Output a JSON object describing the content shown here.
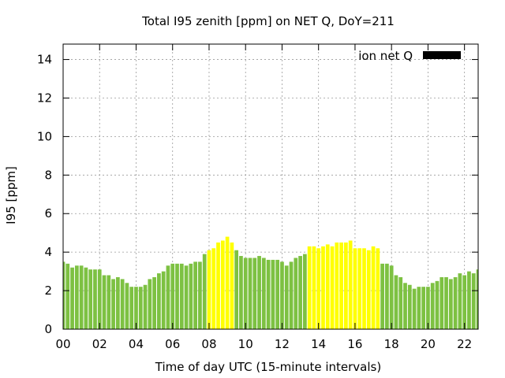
{
  "chart_data": {
    "type": "bar",
    "title": "Total I95 zenith [ppm] on NET Q, DoY=211",
    "xlabel": "Time of day UTC (15-minute intervals)",
    "ylabel": "I95 [ppm]",
    "xlim": [
      0,
      22.75
    ],
    "ylim": [
      0,
      14.8
    ],
    "xticks": [
      "00",
      "02",
      "04",
      "06",
      "08",
      "10",
      "12",
      "14",
      "16",
      "18",
      "20",
      "22"
    ],
    "yticks": [
      "0",
      "2",
      "4",
      "6",
      "8",
      "10",
      "12",
      "14"
    ],
    "grid": true,
    "legend_position": "top-right",
    "series": [
      {
        "name": "ion net Q",
        "color": "#000000",
        "x": [
          0.0,
          0.25,
          0.5,
          0.75,
          1.0,
          1.25,
          1.5,
          1.75,
          2.0,
          2.25,
          2.5,
          2.75,
          3.0,
          3.25,
          3.5,
          3.75,
          4.0,
          4.25,
          4.5,
          4.75,
          5.0,
          5.25,
          5.5,
          5.75,
          6.0,
          6.25,
          6.5,
          6.75,
          7.0,
          7.25,
          7.5,
          7.75,
          8.0,
          8.25,
          8.5,
          8.75,
          9.0,
          9.25,
          9.5,
          9.75,
          10.0,
          10.25,
          10.5,
          10.75,
          11.0,
          11.25,
          11.5,
          11.75,
          12.0,
          12.25,
          12.5,
          12.75,
          13.0,
          13.25,
          13.5,
          13.75,
          14.0,
          14.25,
          14.5,
          14.75,
          15.0,
          15.25,
          15.5,
          15.75,
          16.0,
          16.25,
          16.5,
          16.75,
          17.0,
          17.25,
          17.5,
          17.75,
          18.0,
          18.25,
          18.5,
          18.75,
          19.0,
          19.25,
          19.5,
          19.75,
          20.0,
          20.25,
          20.5,
          20.75,
          21.0,
          21.25,
          21.5,
          21.75,
          22.0,
          22.25,
          22.5,
          22.75
        ],
        "values": [
          3.5,
          3.4,
          3.2,
          3.3,
          3.3,
          3.2,
          3.1,
          3.1,
          3.1,
          2.8,
          2.8,
          2.6,
          2.7,
          2.6,
          2.4,
          2.2,
          2.2,
          2.2,
          2.3,
          2.6,
          2.7,
          2.9,
          3.0,
          3.3,
          3.4,
          3.4,
          3.4,
          3.3,
          3.4,
          3.5,
          3.5,
          3.9,
          4.1,
          4.2,
          4.5,
          4.6,
          4.8,
          4.5,
          4.1,
          3.8,
          3.7,
          3.7,
          3.7,
          3.8,
          3.7,
          3.6,
          3.6,
          3.6,
          3.5,
          3.3,
          3.5,
          3.7,
          3.8,
          3.9,
          4.3,
          4.3,
          4.2,
          4.3,
          4.4,
          4.3,
          4.5,
          4.5,
          4.5,
          4.6,
          4.2,
          4.2,
          4.2,
          4.1,
          4.3,
          4.2,
          3.4,
          3.4,
          3.3,
          2.8,
          2.7,
          2.4,
          2.3,
          2.1,
          2.2,
          2.2,
          2.2,
          2.4,
          2.5,
          2.7,
          2.7,
          2.6,
          2.7,
          2.9,
          2.8,
          3.0,
          2.9,
          3.1
        ],
        "colors": [
          "#7dc142",
          "#7dc142",
          "#7dc142",
          "#7dc142",
          "#7dc142",
          "#7dc142",
          "#7dc142",
          "#7dc142",
          "#7dc142",
          "#7dc142",
          "#7dc142",
          "#7dc142",
          "#7dc142",
          "#7dc142",
          "#7dc142",
          "#7dc142",
          "#7dc142",
          "#7dc142",
          "#7dc142",
          "#7dc142",
          "#7dc142",
          "#7dc142",
          "#7dc142",
          "#7dc142",
          "#7dc142",
          "#7dc142",
          "#7dc142",
          "#7dc142",
          "#7dc142",
          "#7dc142",
          "#7dc142",
          "#7dc142",
          "#ffff00",
          "#ffff00",
          "#ffff00",
          "#ffff00",
          "#ffff00",
          "#ffff00",
          "#7dc142",
          "#7dc142",
          "#7dc142",
          "#7dc142",
          "#7dc142",
          "#7dc142",
          "#7dc142",
          "#7dc142",
          "#7dc142",
          "#7dc142",
          "#7dc142",
          "#7dc142",
          "#7dc142",
          "#7dc142",
          "#7dc142",
          "#7dc142",
          "#ffff00",
          "#ffff00",
          "#ffff00",
          "#ffff00",
          "#ffff00",
          "#ffff00",
          "#ffff00",
          "#ffff00",
          "#ffff00",
          "#ffff00",
          "#ffff00",
          "#ffff00",
          "#ffff00",
          "#ffff00",
          "#ffff00",
          "#ffff00",
          "#7dc142",
          "#7dc142",
          "#7dc142",
          "#7dc142",
          "#7dc142",
          "#7dc142",
          "#7dc142",
          "#7dc142",
          "#7dc142",
          "#7dc142",
          "#7dc142",
          "#7dc142",
          "#7dc142",
          "#7dc142",
          "#7dc142",
          "#7dc142",
          "#7dc142",
          "#7dc142",
          "#7dc142",
          "#7dc142",
          "#7dc142",
          "#7dc142"
        ]
      }
    ]
  }
}
